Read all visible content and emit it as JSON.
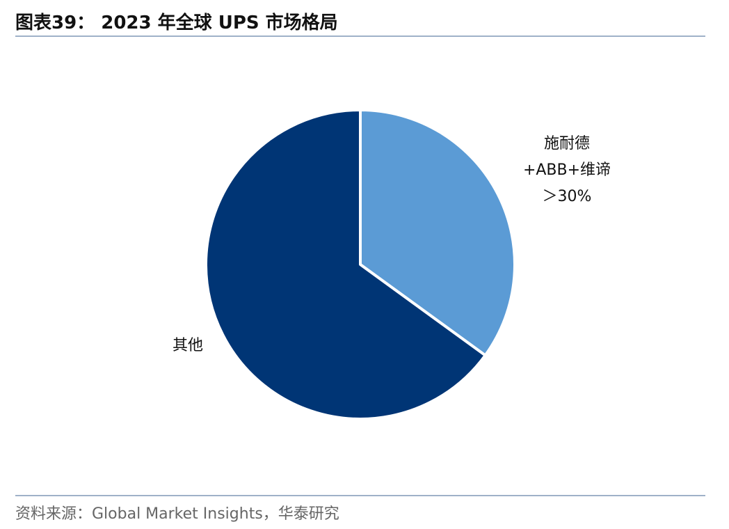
{
  "chart_data": {
    "type": "pie",
    "title": "图表39： 2023 年全球 UPS 市场格局",
    "categories": [
      "施耐德\n+ABB+维谛\n＞30%",
      "其他"
    ],
    "values": [
      35,
      65
    ],
    "colors": [
      "#5b9bd5",
      "#003575"
    ],
    "source": "资料来源：Global Market Insights，华泰研究"
  }
}
